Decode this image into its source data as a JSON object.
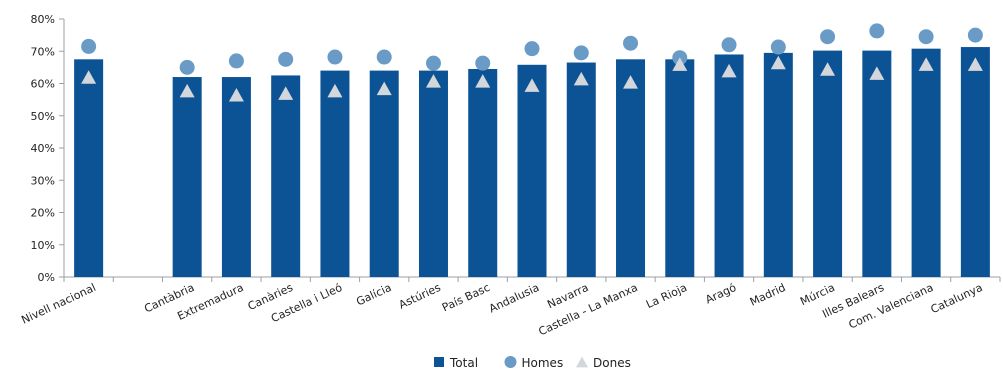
{
  "chart_data": {
    "type": "bar",
    "categories": [
      "Nivell nacional",
      "",
      "Cantàbria",
      "Extremadura",
      "Canàries",
      "Castella i Lleó",
      "Galícia",
      "Astúries",
      "País Basc",
      "Andalusia",
      "Navarra",
      "Castella - La Manxa",
      "La Rioja",
      "Aragó",
      "Madrid",
      "Múrcia",
      "Illes Balears",
      "Com. Valenciana",
      "Catalunya"
    ],
    "series": [
      {
        "name": "Total",
        "kind": "bar",
        "color": "#0B5394",
        "values": [
          67.5,
          null,
          62,
          62,
          62.5,
          64,
          64,
          64,
          64.5,
          65.8,
          66.5,
          67.5,
          67.5,
          69,
          69.5,
          70.2,
          70.2,
          70.8,
          71.3
        ]
      },
      {
        "name": "Homes",
        "kind": "circle",
        "color": "#6A9BC7",
        "values": [
          71.5,
          null,
          65,
          67,
          67.5,
          68.2,
          68.2,
          66.3,
          66.3,
          70.8,
          69.5,
          72.5,
          68,
          72,
          71.3,
          74.5,
          76.3,
          74.5,
          75
        ]
      },
      {
        "name": "Dones",
        "kind": "triangle",
        "color": "#D3D6DB",
        "values": [
          62,
          null,
          57.8,
          56.5,
          57,
          57.8,
          58.5,
          60.8,
          60.8,
          59.5,
          61.5,
          60.5,
          66,
          64,
          66.5,
          64.5,
          63.2,
          66,
          66
        ]
      }
    ],
    "y_ticks": [
      "0%",
      "10%",
      "20%",
      "30%",
      "40%",
      "50%",
      "60%",
      "70%",
      "80%"
    ],
    "ylim": [
      0,
      80
    ],
    "grid": false,
    "legend": "bottom-center"
  }
}
